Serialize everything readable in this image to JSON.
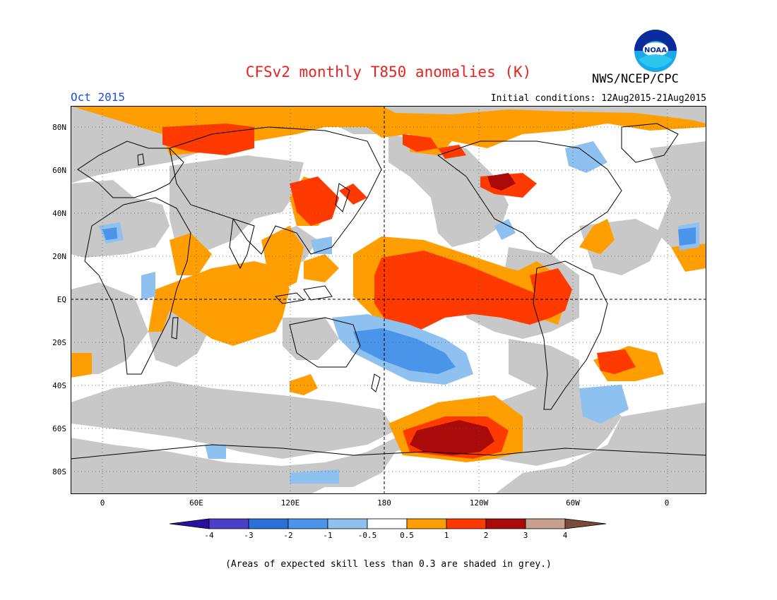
{
  "header": {
    "title": "CFSv2 monthly T850 anomalies (K)",
    "org": "NWS/NCEP/CPC",
    "logo_text": "NOAA",
    "month": "Oct 2015",
    "initial_conditions": "Initial conditions: 12Aug2015-21Aug2015"
  },
  "axes": {
    "y_ticks": [
      "80N",
      "60N",
      "40N",
      "20N",
      "EQ",
      "20S",
      "40S",
      "60S",
      "80S"
    ],
    "x_ticks": [
      "0",
      "60E",
      "120E",
      "180",
      "120W",
      "60W",
      "0"
    ]
  },
  "colorbar": {
    "ticks": [
      "-4",
      "-3",
      "-2",
      "-1",
      "-0.5",
      "0.5",
      "1",
      "2",
      "3",
      "4"
    ],
    "colors": [
      "#2b0fa0",
      "#4a3fc8",
      "#2b6fd8",
      "#4a95ea",
      "#8ec0f0",
      "#ffffff",
      "#ff9e00",
      "#ff3a00",
      "#aa0a0a",
      "#c8a090",
      "#7a4a3a"
    ]
  },
  "caption": "(Areas of expected skill less than 0.3 are shaded in grey.)",
  "map_colors": {
    "grey": "#c8c8c8",
    "orange": "#ff9e00",
    "red": "#ff3a00",
    "darkred": "#aa0a0a",
    "lightblue": "#8ec0f0",
    "blue": "#4a95ea"
  }
}
